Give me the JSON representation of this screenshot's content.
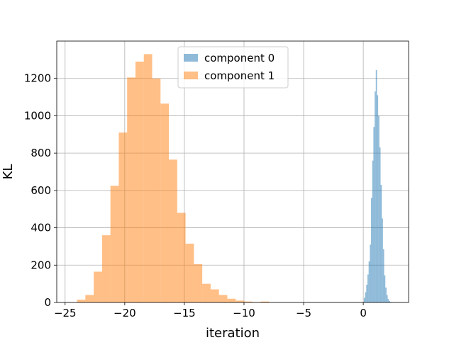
{
  "chart_data": {
    "type": "histogram",
    "xlabel": "iteration",
    "ylabel": "KL",
    "xlim": [
      -25.7,
      3.8
    ],
    "ylim": [
      0,
      1400
    ],
    "x_ticks": [
      -25,
      -20,
      -15,
      -10,
      -5,
      0
    ],
    "y_ticks": [
      0,
      200,
      400,
      600,
      800,
      1000,
      1200
    ],
    "x_tick_labels": [
      "−25",
      "−20",
      "−15",
      "−10",
      "−5",
      "0"
    ],
    "y_tick_labels": [
      "0",
      "200",
      "400",
      "600",
      "800",
      "1000",
      "1200"
    ],
    "grid": true,
    "legend_position": "upper-center",
    "series": [
      {
        "name": "component 0",
        "color": "#1f77b4",
        "alpha": 0.5,
        "bins": [
          [
            -0.05,
            0.05,
            3
          ],
          [
            0.05,
            0.15,
            25
          ],
          [
            0.15,
            0.25,
            55
          ],
          [
            0.25,
            0.35,
            95
          ],
          [
            0.35,
            0.45,
            150
          ],
          [
            0.45,
            0.55,
            220
          ],
          [
            0.55,
            0.65,
            310
          ],
          [
            0.65,
            0.75,
            560
          ],
          [
            0.75,
            0.85,
            760
          ],
          [
            0.85,
            0.95,
            940
          ],
          [
            0.95,
            1.05,
            1130
          ],
          [
            1.05,
            1.15,
            1245
          ],
          [
            1.15,
            1.25,
            1110
          ],
          [
            1.25,
            1.35,
            1000
          ],
          [
            1.35,
            1.45,
            830
          ],
          [
            1.45,
            1.55,
            630
          ],
          [
            1.55,
            1.65,
            450
          ],
          [
            1.65,
            1.75,
            285
          ],
          [
            1.75,
            1.85,
            145
          ],
          [
            1.85,
            1.95,
            80
          ],
          [
            1.95,
            2.05,
            40
          ],
          [
            2.05,
            2.15,
            18
          ],
          [
            2.15,
            2.25,
            8
          ],
          [
            2.25,
            2.35,
            3
          ]
        ]
      },
      {
        "name": "component 1",
        "color": "#ff7f0e",
        "alpha": 0.5,
        "bins": [
          [
            -24.0,
            -23.3,
            15
          ],
          [
            -23.3,
            -22.6,
            40
          ],
          [
            -22.6,
            -21.9,
            165
          ],
          [
            -21.9,
            -21.2,
            360
          ],
          [
            -21.2,
            -20.5,
            625
          ],
          [
            -20.5,
            -19.8,
            910
          ],
          [
            -19.8,
            -19.1,
            1205
          ],
          [
            -19.1,
            -18.4,
            1290
          ],
          [
            -18.4,
            -17.7,
            1330
          ],
          [
            -17.7,
            -17.0,
            1200
          ],
          [
            -17.0,
            -16.3,
            1065
          ],
          [
            -16.3,
            -15.6,
            765
          ],
          [
            -15.6,
            -14.9,
            480
          ],
          [
            -14.9,
            -14.2,
            315
          ],
          [
            -14.2,
            -13.5,
            205
          ],
          [
            -13.5,
            -12.8,
            100
          ],
          [
            -12.8,
            -12.1,
            70
          ],
          [
            -12.1,
            -11.4,
            40
          ],
          [
            -11.4,
            -10.7,
            20
          ],
          [
            -10.7,
            -10.0,
            10
          ],
          [
            -10.0,
            -9.3,
            5
          ],
          [
            -9.3,
            -8.6,
            2
          ],
          [
            -8.6,
            -7.9,
            5
          ]
        ]
      }
    ]
  }
}
